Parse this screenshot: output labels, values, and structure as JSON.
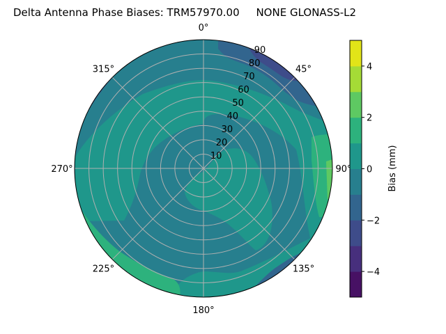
{
  "chart_data": {
    "type": "polar-contour",
    "title": "Delta Antenna Phase Biases: TRM57970.00     NONE GLONASS-L2",
    "theta_ticks": [
      {
        "deg": 0,
        "label": "0°"
      },
      {
        "deg": 45,
        "label": "45°"
      },
      {
        "deg": 90,
        "label": "90°"
      },
      {
        "deg": 135,
        "label": "135°"
      },
      {
        "deg": 180,
        "label": "180°"
      },
      {
        "deg": 225,
        "label": "225°"
      },
      {
        "deg": 270,
        "label": "270°"
      },
      {
        "deg": 315,
        "label": "315°"
      }
    ],
    "theta_direction": "clockwise",
    "theta_zero": "north",
    "r_ticks": [
      10,
      20,
      30,
      40,
      50,
      60,
      70,
      80,
      90
    ],
    "r_tick_labels": [
      "10",
      "20",
      "30",
      "40",
      "50",
      "60",
      "70",
      "80",
      "90"
    ],
    "r_range": [
      0,
      90
    ],
    "r_label_angle_deg": 22.5,
    "grid": true,
    "colorbar": {
      "label": "Bias (mm)",
      "range": [
        -5,
        5
      ],
      "levels": [
        -5,
        -4,
        -3,
        -2,
        -1,
        0,
        1,
        2,
        3,
        4,
        5
      ],
      "colors": [
        "#471164",
        "#472f7d",
        "#3e4c8a",
        "#32658e",
        "#277f8e",
        "#1f978b",
        "#2db27d",
        "#5ec962",
        "#a5db36",
        "#e2e418"
      ],
      "ticks": [
        -4,
        -2,
        0,
        2,
        4
      ],
      "tick_labels": [
        "−4",
        "−2",
        "0",
        "2",
        "4"
      ],
      "placement": "right"
    },
    "dominant_level_range": [
      -1,
      0
    ],
    "level_regions_description_levels": {
      "min_level_present": [
        -3,
        -2
      ],
      "max_level_present": [
        2,
        3
      ]
    }
  }
}
